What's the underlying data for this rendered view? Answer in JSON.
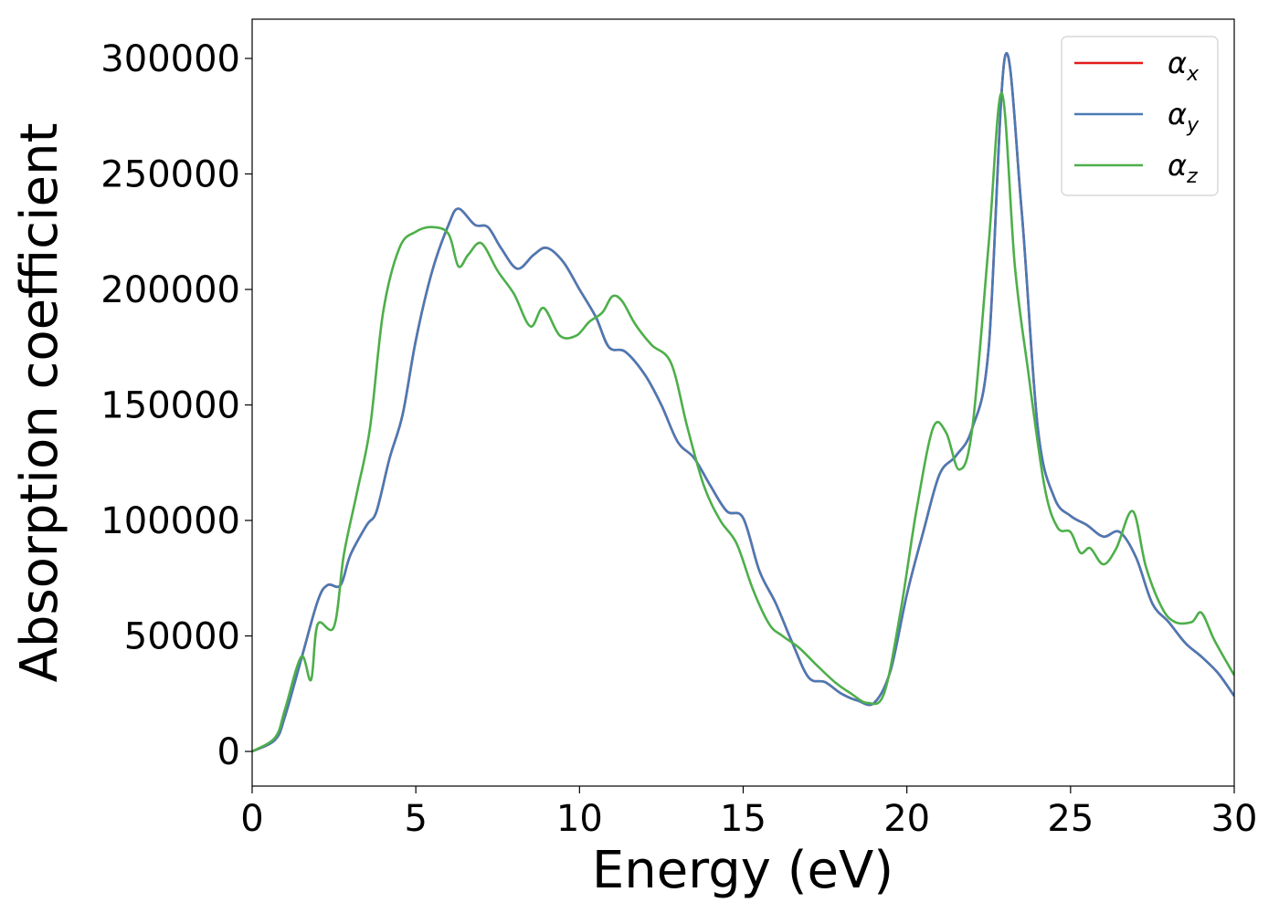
{
  "chart_data": {
    "type": "line",
    "title": "",
    "xlabel": "Energy (eV)",
    "ylabel": "Absorption coefficient",
    "xlim": [
      0,
      30
    ],
    "ylim": [
      -15000,
      317000
    ],
    "xticks": [
      0,
      5,
      10,
      15,
      20,
      25,
      30
    ],
    "xtick_labels": [
      "0",
      "5",
      "10",
      "15",
      "20",
      "25",
      "30"
    ],
    "yticks": [
      0,
      50000,
      100000,
      150000,
      200000,
      250000,
      300000
    ],
    "ytick_labels": [
      "0",
      "50000",
      "100000",
      "150000",
      "200000",
      "250000",
      "300000"
    ],
    "grid": false,
    "legend_position": "top-right",
    "series": [
      {
        "name": "αx",
        "symbol": "α",
        "subscript": "x",
        "color": "#e41a1c",
        "x": [
          0,
          0.7,
          1.0,
          1.5,
          2.0,
          2.3,
          2.7,
          3.0,
          3.5,
          3.8,
          4.2,
          4.6,
          5.0,
          5.5,
          6.0,
          6.3,
          6.8,
          7.2,
          7.6,
          8.1,
          8.6,
          9.0,
          9.5,
          10.0,
          10.5,
          10.9,
          11.4,
          12.0,
          12.5,
          13.0,
          13.5,
          14.0,
          14.5,
          15.0,
          15.5,
          16.0,
          16.5,
          17.0,
          17.5,
          18.0,
          18.5,
          19.0,
          19.5,
          20.0,
          20.5,
          21.0,
          21.5,
          22.0,
          22.5,
          23.0,
          23.5,
          24.0,
          24.5,
          25.0,
          25.5,
          26.0,
          26.5,
          27.0,
          27.5,
          28.0,
          28.5,
          29.0,
          29.5,
          30.0
        ],
        "y": [
          0,
          5000,
          15000,
          40000,
          65000,
          72000,
          72000,
          85000,
          98000,
          104000,
          127000,
          146000,
          178000,
          208000,
          228000,
          235000,
          228000,
          227000,
          218000,
          209000,
          215000,
          218000,
          212000,
          200000,
          188000,
          175000,
          173000,
          163000,
          150000,
          134000,
          127000,
          115000,
          104000,
          101000,
          78000,
          64000,
          47000,
          32000,
          30000,
          25000,
          22000,
          21000,
          35000,
          68000,
          95000,
          120000,
          128000,
          140000,
          175000,
          301000,
          235000,
          140000,
          110000,
          102000,
          98000,
          93000,
          95000,
          84000,
          64000,
          56000,
          47000,
          41000,
          34000,
          24000
        ]
      },
      {
        "name": "αy",
        "symbol": "α",
        "subscript": "y",
        "color": "#4a7ab5",
        "x": [
          0,
          0.7,
          1.0,
          1.5,
          2.0,
          2.3,
          2.7,
          3.0,
          3.5,
          3.8,
          4.2,
          4.6,
          5.0,
          5.5,
          6.0,
          6.3,
          6.8,
          7.2,
          7.6,
          8.1,
          8.6,
          9.0,
          9.5,
          10.0,
          10.5,
          10.9,
          11.4,
          12.0,
          12.5,
          13.0,
          13.5,
          14.0,
          14.5,
          15.0,
          15.5,
          16.0,
          16.5,
          17.0,
          17.5,
          18.0,
          18.5,
          19.0,
          19.5,
          20.0,
          20.5,
          21.0,
          21.5,
          22.0,
          22.5,
          23.0,
          23.5,
          24.0,
          24.5,
          25.0,
          25.5,
          26.0,
          26.5,
          27.0,
          27.5,
          28.0,
          28.5,
          29.0,
          29.5,
          30.0
        ],
        "y": [
          0,
          5000,
          15000,
          40000,
          65000,
          72000,
          72000,
          85000,
          98000,
          104000,
          127000,
          146000,
          178000,
          208000,
          228000,
          235000,
          228000,
          227000,
          218000,
          209000,
          215000,
          218000,
          212000,
          200000,
          188000,
          175000,
          173000,
          163000,
          150000,
          134000,
          127000,
          115000,
          104000,
          101000,
          78000,
          64000,
          47000,
          32000,
          30000,
          25000,
          22000,
          21000,
          35000,
          68000,
          95000,
          120000,
          128000,
          140000,
          175000,
          301000,
          235000,
          140000,
          110000,
          102000,
          98000,
          93000,
          95000,
          84000,
          64000,
          56000,
          47000,
          41000,
          34000,
          24000
        ]
      },
      {
        "name": "αz",
        "symbol": "α",
        "subscript": "z",
        "color": "#4daf4a",
        "x": [
          0,
          0.7,
          1.0,
          1.5,
          1.8,
          2.0,
          2.5,
          2.8,
          3.2,
          3.6,
          4.0,
          4.5,
          5.0,
          5.5,
          6.0,
          6.3,
          6.6,
          7.0,
          7.5,
          8.0,
          8.5,
          8.9,
          9.4,
          9.9,
          10.3,
          10.7,
          11.0,
          11.3,
          11.7,
          12.2,
          12.8,
          13.3,
          13.8,
          14.3,
          14.8,
          15.3,
          15.8,
          16.2,
          16.7,
          17.2,
          17.8,
          18.3,
          18.8,
          19.3,
          19.8,
          20.3,
          20.8,
          21.2,
          21.6,
          22.0,
          22.5,
          22.9,
          23.3,
          23.7,
          24.2,
          24.6,
          25.0,
          25.3,
          25.6,
          26.0,
          26.4,
          26.9,
          27.3,
          27.8,
          28.2,
          28.7,
          29.0,
          29.4,
          30.0
        ],
        "y": [
          0,
          6000,
          18000,
          41000,
          31000,
          55000,
          54000,
          85000,
          112000,
          140000,
          190000,
          218000,
          225000,
          227000,
          224000,
          210000,
          215000,
          220000,
          208000,
          198000,
          184000,
          192000,
          180000,
          180000,
          186000,
          190000,
          197000,
          195000,
          185000,
          176000,
          168000,
          140000,
          115000,
          100000,
          90000,
          70000,
          55000,
          50000,
          45000,
          38000,
          30000,
          25000,
          21000,
          25000,
          60000,
          105000,
          140000,
          138000,
          122000,
          140000,
          220000,
          285000,
          210000,
          165000,
          115000,
          97000,
          95000,
          86000,
          88000,
          81000,
          88000,
          104000,
          80000,
          62000,
          56000,
          56000,
          60000,
          48000,
          33000
        ]
      }
    ]
  }
}
